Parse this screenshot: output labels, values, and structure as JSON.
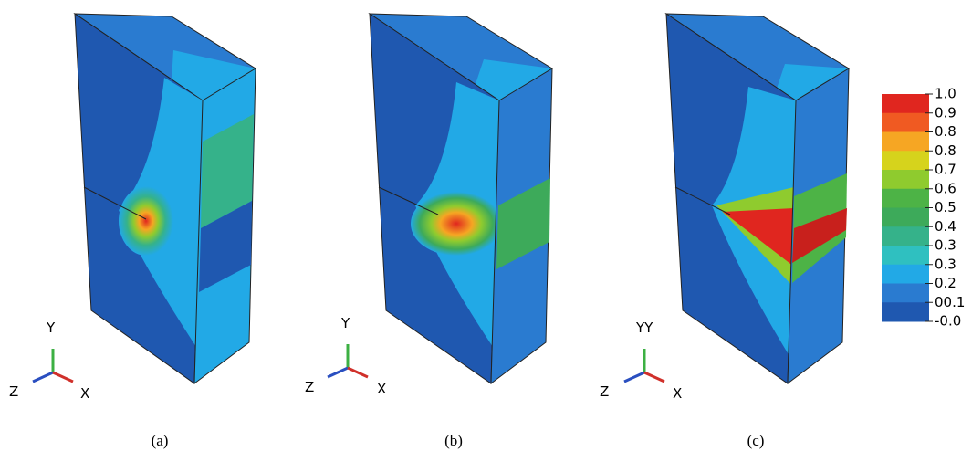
{
  "panels": [
    {
      "label": "(a)",
      "triad": {
        "y": "Y",
        "z": "Z",
        "x": "X"
      }
    },
    {
      "label": "(b)",
      "triad": {
        "y": "Y",
        "z": "Z",
        "x": "X"
      }
    },
    {
      "label": "(c)",
      "triad": {
        "y": "YY",
        "z": "Z",
        "x": "X"
      }
    }
  ],
  "legend": {
    "labels": [
      "1.0",
      "0.9",
      "0.8",
      "0.8",
      "0.7",
      "0.6",
      "0.5",
      "0.4",
      "0.3",
      "0.3",
      "0.2",
      "00.1",
      "-0.0"
    ],
    "colors": [
      "#e0261f",
      "#f05a22",
      "#f6a623",
      "#d6d31c",
      "#8fcb2e",
      "#4db346",
      "#3daa5a",
      "#35b28a",
      "#2fc0c0",
      "#22a9e6",
      "#2a7bd0",
      "#1f58b0"
    ]
  }
}
